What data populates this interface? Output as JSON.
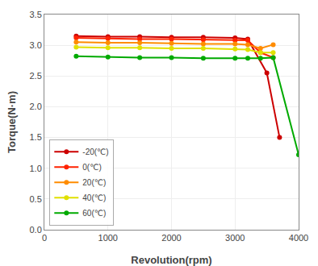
{
  "chart_data": {
    "type": "line",
    "xlabel": "Revolution(rpm)",
    "ylabel": "Torque(N·m)",
    "series": [
      {
        "name": "-20(℃)",
        "color": "#cc0000",
        "x": [
          500,
          1000,
          1500,
          2000,
          2500,
          3000,
          3200,
          3500,
          3700
        ],
        "values": [
          3.15,
          3.14,
          3.14,
          3.13,
          3.13,
          3.12,
          3.1,
          2.55,
          1.5
        ]
      },
      {
        "name": "0(℃)",
        "color": "#ff2200",
        "x": [
          500,
          1000,
          1500,
          2000,
          2500,
          3000,
          3200,
          3400,
          3600
        ],
        "values": [
          3.12,
          3.11,
          3.1,
          3.1,
          3.09,
          3.08,
          3.08,
          2.88,
          2.8
        ]
      },
      {
        "name": "20(℃)",
        "color": "#ff8c00",
        "x": [
          500,
          1000,
          1500,
          2000,
          2500,
          3000,
          3200,
          3400,
          3600
        ],
        "values": [
          3.05,
          3.04,
          3.04,
          3.03,
          3.02,
          3.02,
          3.01,
          2.95,
          3.01
        ]
      },
      {
        "name": "40(℃)",
        "color": "#e0e000",
        "x": [
          500,
          1000,
          1500,
          2000,
          2500,
          3000,
          3200,
          3400,
          3600
        ],
        "values": [
          2.97,
          2.96,
          2.96,
          2.95,
          2.95,
          2.94,
          2.93,
          2.88,
          2.88
        ]
      },
      {
        "name": "60(℃)",
        "color": "#00aa00",
        "x": [
          500,
          1000,
          1500,
          2000,
          2500,
          3000,
          3200,
          3400,
          3600,
          4000
        ],
        "values": [
          2.82,
          2.81,
          2.8,
          2.8,
          2.79,
          2.79,
          2.79,
          2.79,
          2.8,
          1.22
        ]
      }
    ],
    "xlim": [
      0,
      4000
    ],
    "ylim": [
      0.0,
      3.5
    ],
    "xticks": [
      0,
      1000,
      2000,
      3000,
      4000
    ],
    "yticks": [
      {
        "value": 0.0,
        "label": "0.0"
      },
      0.5,
      {
        "value": 1.0,
        "label": "1.0"
      },
      1.5,
      {
        "value": 2.0,
        "label": "2.0"
      },
      2.5,
      {
        "value": 3.0,
        "label": "3.0"
      },
      3.5
    ],
    "marker": "circle",
    "grid": true,
    "legend": "lower left"
  }
}
